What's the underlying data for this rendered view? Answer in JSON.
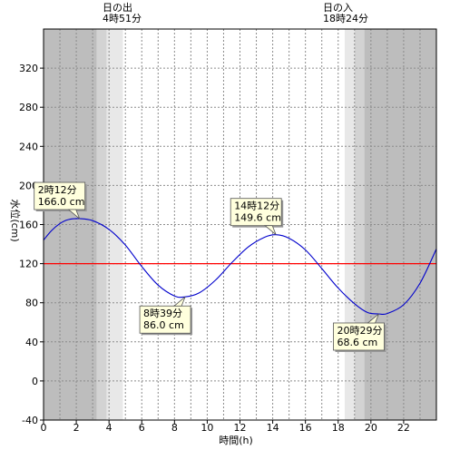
{
  "chart_data": {
    "type": "line",
    "xlabel": "時間(h)",
    "ylabel": "水位(cm)",
    "xlim": [
      0,
      24
    ],
    "ylim": [
      -40,
      360
    ],
    "x_ticks": [
      0,
      2,
      4,
      6,
      8,
      10,
      12,
      14,
      16,
      18,
      20,
      22
    ],
    "y_ticks": [
      -40,
      0,
      40,
      80,
      120,
      160,
      200,
      240,
      280,
      320
    ],
    "reference_line": {
      "value": 120,
      "color": "#ff0000"
    },
    "sunrise": {
      "title": "日の出",
      "time": "4時51分",
      "hour": 4.85
    },
    "sunset": {
      "title": "日の入",
      "time": "18時24分",
      "hour": 18.4
    },
    "series": [
      {
        "color": "#0000cc",
        "points": [
          [
            0,
            144
          ],
          [
            0.5,
            154
          ],
          [
            1,
            161
          ],
          [
            1.5,
            165
          ],
          [
            2.2,
            166
          ],
          [
            3,
            164
          ],
          [
            4,
            155
          ],
          [
            5,
            139
          ],
          [
            6,
            117
          ],
          [
            7,
            98
          ],
          [
            8,
            87
          ],
          [
            8.65,
            86
          ],
          [
            9.5,
            90
          ],
          [
            10.5,
            103
          ],
          [
            11.5,
            121
          ],
          [
            12.5,
            137
          ],
          [
            13.5,
            147
          ],
          [
            14.2,
            149.6
          ],
          [
            15,
            146
          ],
          [
            16,
            134
          ],
          [
            17,
            115
          ],
          [
            18,
            95
          ],
          [
            19,
            79
          ],
          [
            19.8,
            70
          ],
          [
            20.48,
            68.6
          ],
          [
            21,
            69
          ],
          [
            22,
            78
          ],
          [
            23,
            100
          ],
          [
            24,
            135
          ]
        ]
      }
    ],
    "annotations": [
      {
        "time": "2時12分",
        "value": "166.0 cm",
        "x": 2.2,
        "y": 166.0
      },
      {
        "time": "8時39分",
        "value": "86.0 cm",
        "x": 8.65,
        "y": 86.0
      },
      {
        "time": "14時12分",
        "value": "149.6 cm",
        "x": 14.2,
        "y": 149.6
      },
      {
        "time": "20時29分",
        "value": "68.6 cm",
        "x": 20.48,
        "y": 68.6
      }
    ],
    "colors": {
      "night": "#bdbdbd",
      "twilight_dark": "#d3d3d3",
      "twilight_light": "#e8e8e8",
      "day": "#ffffff",
      "grid": "#8c8c8c",
      "callout_fill": "#ffffdd"
    }
  }
}
